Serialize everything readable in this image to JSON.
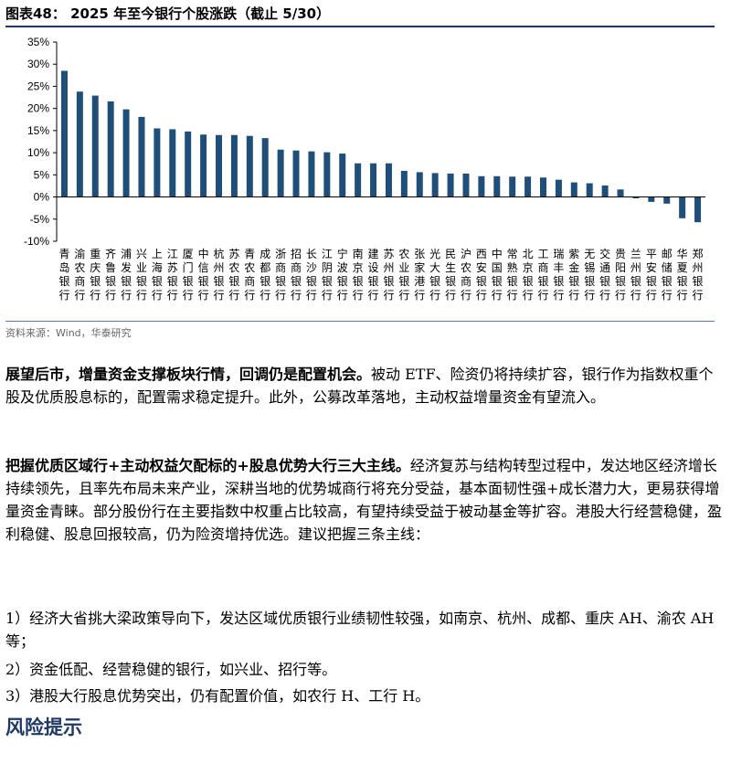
{
  "figure": {
    "title": "图表48：  2025 年至今银行个股涨跌（截止 5/30）",
    "source": "资料来源：Wind，华泰研究"
  },
  "chart_data": {
    "type": "bar",
    "categories": [
      "青岛银行",
      "渝农商行",
      "重庆银行",
      "齐鲁银行",
      "浦发银行",
      "兴业银行",
      "上海银行",
      "江苏银行",
      "厦门银行",
      "中信银行",
      "杭州银行",
      "苏农银行",
      "青农商行",
      "成都银行",
      "浙商银行",
      "招商银行",
      "长沙银行",
      "江阴银行",
      "宁波银行",
      "南京银行",
      "建设银行",
      "苏州银行",
      "农业银行",
      "张家港行",
      "光大银行",
      "民生银行",
      "沪农商行",
      "西安银行",
      "中国银行",
      "常熟银行",
      "北京银行",
      "工商银行",
      "瑞丰银行",
      "紫金银行",
      "无锡银行",
      "交通银行",
      "贵阳银行",
      "兰州银行",
      "平安银行",
      "邮储银行",
      "华夏银行",
      "郑州银行"
    ],
    "values": [
      28.5,
      23.8,
      22.9,
      21.6,
      19.8,
      18.1,
      15.5,
      15.3,
      14.8,
      14.1,
      14.0,
      14.0,
      13.8,
      13.3,
      10.7,
      10.5,
      10.3,
      10.1,
      9.8,
      7.6,
      7.6,
      7.6,
      5.9,
      5.6,
      5.4,
      5.3,
      5.3,
      4.7,
      4.7,
      4.6,
      4.6,
      4.4,
      3.9,
      3.3,
      3.1,
      2.6,
      1.7,
      -0.3,
      -1.1,
      -1.5,
      -4.8,
      -5.7
    ],
    "yticks": [
      "-10%",
      "-5%",
      "0%",
      "5%",
      "10%",
      "15%",
      "20%",
      "25%",
      "30%",
      "35%"
    ],
    "ylim": [
      -10,
      35
    ],
    "bar_color": "#1f4e79"
  },
  "paragraphs": [
    {
      "bold": "展望后市，增量资金支撑板块行情，回调仍是配置机会。",
      "text": "被动 ETF、险资仍将持续扩容，银行作为指数权重个股及优质股息标的，配置需求稳定提升。此外，公募改革落地，主动权益增量资金有望流入。"
    },
    {
      "bold": "把握优质区域行+主动权益欠配标的+股息优势大行三大主线。",
      "text": "经济复苏与结构转型过程中，发达地区经济增长持续领先，且率先布局未来产业，深耕当地的优势城商行将充分受益，基本面韧性强+成长潜力大，更易获得增量资金青睐。部分股份行在主要指数中权重占比较高，有望持续受益于被动基金等扩容。港股大行经营稳健，盈利稳健、股息回报较高，仍为险资增持优选。建议把握三条主线："
    }
  ],
  "list_items": [
    "1）经济大省挑大梁政策导向下，发达区域优质银行业绩韧性较强，如南京、杭州、成都、重庆 AH、渝农 AH 等；",
    "2）资金低配、经营稳健的银行，如兴业、招行等。",
    "3）港股大行股息优势突出，仍有配置价值，如农行 H、工行 H。"
  ],
  "risk": {
    "title": "风险提示"
  }
}
